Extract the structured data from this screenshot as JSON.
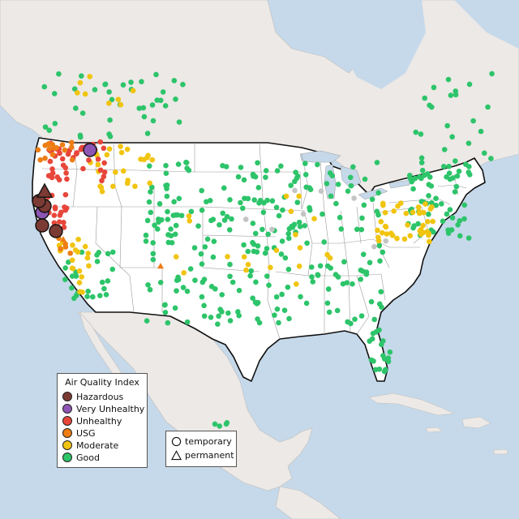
{
  "legend": {
    "title": "Air Quality Index",
    "categories": [
      {
        "label": "Hazardous",
        "color": "#7b3a33"
      },
      {
        "label": "Very Unhealthy",
        "color": "#8e56b4"
      },
      {
        "label": "Unhealthy",
        "color": "#e8463a"
      },
      {
        "label": "USG",
        "color": "#ee7d14"
      },
      {
        "label": "Moderate",
        "color": "#f1c40f"
      },
      {
        "label": "Good",
        "color": "#2dc46a"
      }
    ]
  },
  "monitor_type_legend": {
    "temporary": "temporary",
    "permanent": "permanent"
  },
  "colors": {
    "land_us": "#ffffff",
    "land_other": "#ece9e6",
    "water": "#c6d9ea",
    "state_border": "#9a9a9a",
    "national_border": "#111111",
    "inactive_station": "#c4c4c4"
  }
}
